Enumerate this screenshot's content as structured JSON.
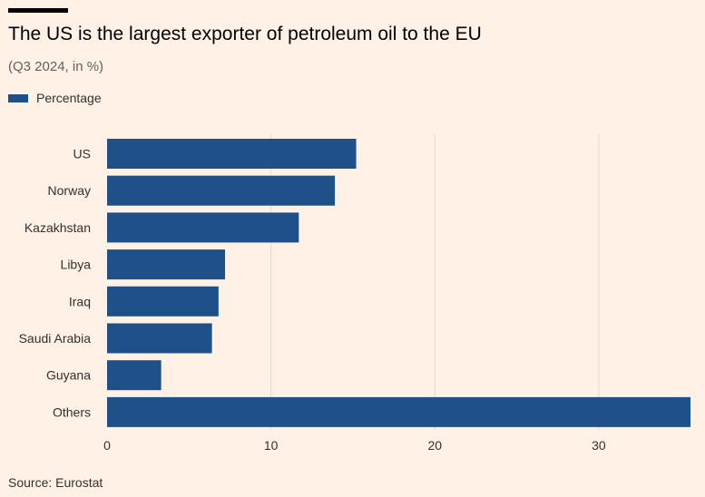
{
  "chart_data": {
    "type": "bar",
    "orientation": "horizontal",
    "title": "The US is the largest exporter of petroleum oil to the EU",
    "subtitle": "(Q3 2024, in %)",
    "categories": [
      "US",
      "Norway",
      "Kazakhstan",
      "Libya",
      "Iraq",
      "Saudi Arabia",
      "Guyana",
      "Others"
    ],
    "series": [
      {
        "name": "Percentage",
        "values": [
          15.2,
          13.9,
          11.7,
          7.2,
          6.8,
          6.4,
          3.3,
          35.6
        ],
        "color": "#1F5089"
      }
    ],
    "xlim": [
      0,
      35.6
    ],
    "xticks": [
      0,
      10,
      20,
      30
    ],
    "xlabel": "",
    "ylabel": "",
    "grid": true,
    "legend_position": "top-left",
    "source": "Source: Eurostat"
  },
  "colors": {
    "background": "#FFF1E5",
    "bar": "#1F5089",
    "gridline": "#E6D9CE",
    "text": "#33302E"
  }
}
